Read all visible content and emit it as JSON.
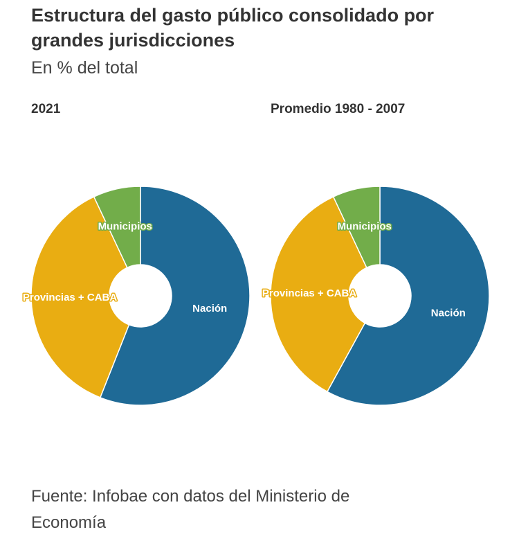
{
  "header": {
    "title": "Estructura del gasto público consolidado por grandes jurisdicciones",
    "subtitle": "En % del total"
  },
  "chart_data": [
    {
      "type": "pie",
      "title": "2021",
      "categories": [
        "Nación",
        "Provincias + CABA",
        "Municipios"
      ],
      "values": [
        56,
        37,
        7
      ],
      "colors": [
        "#1f6a96",
        "#e9ad12",
        "#72ad4a"
      ]
    },
    {
      "type": "pie",
      "title": "Promedio 1980 - 2007",
      "categories": [
        "Nación",
        "Provincias + CABA",
        "Municipios"
      ],
      "values": [
        58,
        35,
        7
      ],
      "colors": [
        "#1f6a96",
        "#e9ad12",
        "#72ad4a"
      ]
    }
  ],
  "source": "Fuente: Infobae con datos del Ministerio de Economía"
}
